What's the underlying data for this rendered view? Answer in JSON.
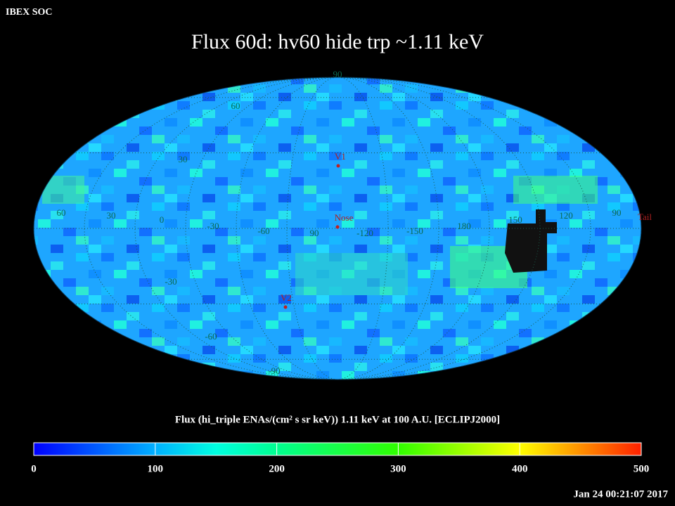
{
  "header": {
    "source": "IBEX SOC",
    "title": "Flux   60d: hv60 hide trp ~1.11 keV",
    "timestamp": "Jan 24 00:21:07 2017"
  },
  "map": {
    "grid_labels": [
      "90",
      "60",
      "30",
      "-30",
      "-60",
      "-90",
      "60",
      "30",
      "0",
      "-30",
      "-60",
      "90",
      "-120",
      "-150",
      "180",
      "150",
      "120",
      "90"
    ],
    "markers": [
      "V1",
      "Nose",
      "V2",
      "Tail"
    ]
  },
  "colorbar": {
    "title": "Flux (hi_triple ENAs/(cm² s sr keV))  1.11 keV at 100 A.U. [ECLIPJ2000]",
    "range": [
      0,
      500
    ],
    "ticks": [
      0,
      100,
      200,
      300,
      400,
      500
    ]
  }
}
